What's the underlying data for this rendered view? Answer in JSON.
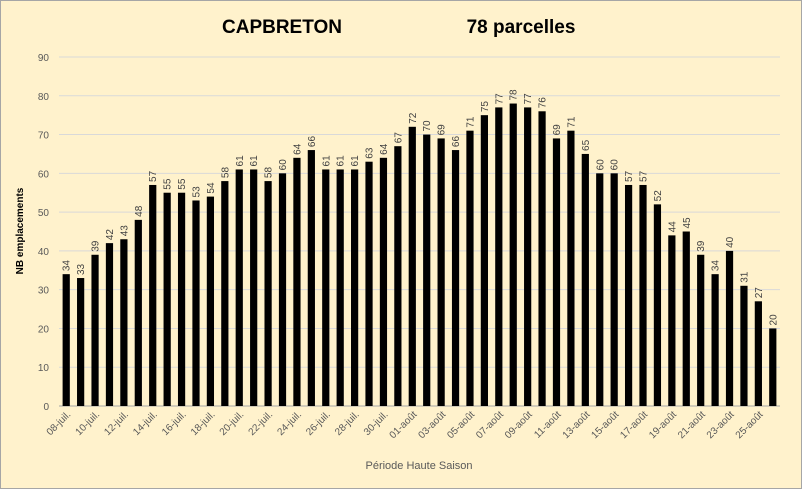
{
  "chart_data": {
    "type": "bar",
    "title": "CAPBRETON",
    "subtitle": "78 parcelles",
    "xlabel": "Période Haute Saison",
    "ylabel": "NB emplacements",
    "ylim": [
      0,
      90
    ],
    "yticks": [
      0,
      10,
      20,
      30,
      40,
      50,
      60,
      70,
      80,
      90
    ],
    "grid": true,
    "legend": "none",
    "bar_color": "#000000",
    "grid_color": "#d9d9d9",
    "background": "#fff2cc",
    "values": [
      34,
      33,
      39,
      42,
      43,
      48,
      57,
      55,
      55,
      53,
      54,
      58,
      61,
      61,
      58,
      60,
      64,
      66,
      61,
      61,
      61,
      63,
      64,
      67,
      72,
      70,
      69,
      66,
      71,
      75,
      77,
      78,
      77,
      76,
      69,
      71,
      65,
      60,
      60,
      57,
      57,
      52,
      44,
      45,
      39,
      34,
      40,
      31,
      27,
      20
    ],
    "tick_labels": [
      "08-juil.",
      "10-juil.",
      "12-juil.",
      "14-juil.",
      "16-juil.",
      "18-juil.",
      "20-juil.",
      "22-juil.",
      "24-juil.",
      "26-juil.",
      "28-juil.",
      "30-juil.",
      "01-août",
      "03-août",
      "05-août",
      "07-août",
      "09-août",
      "11-août",
      "13-août",
      "15-août",
      "17-août",
      "19-août",
      "21-août",
      "23-août",
      "25-août"
    ]
  }
}
